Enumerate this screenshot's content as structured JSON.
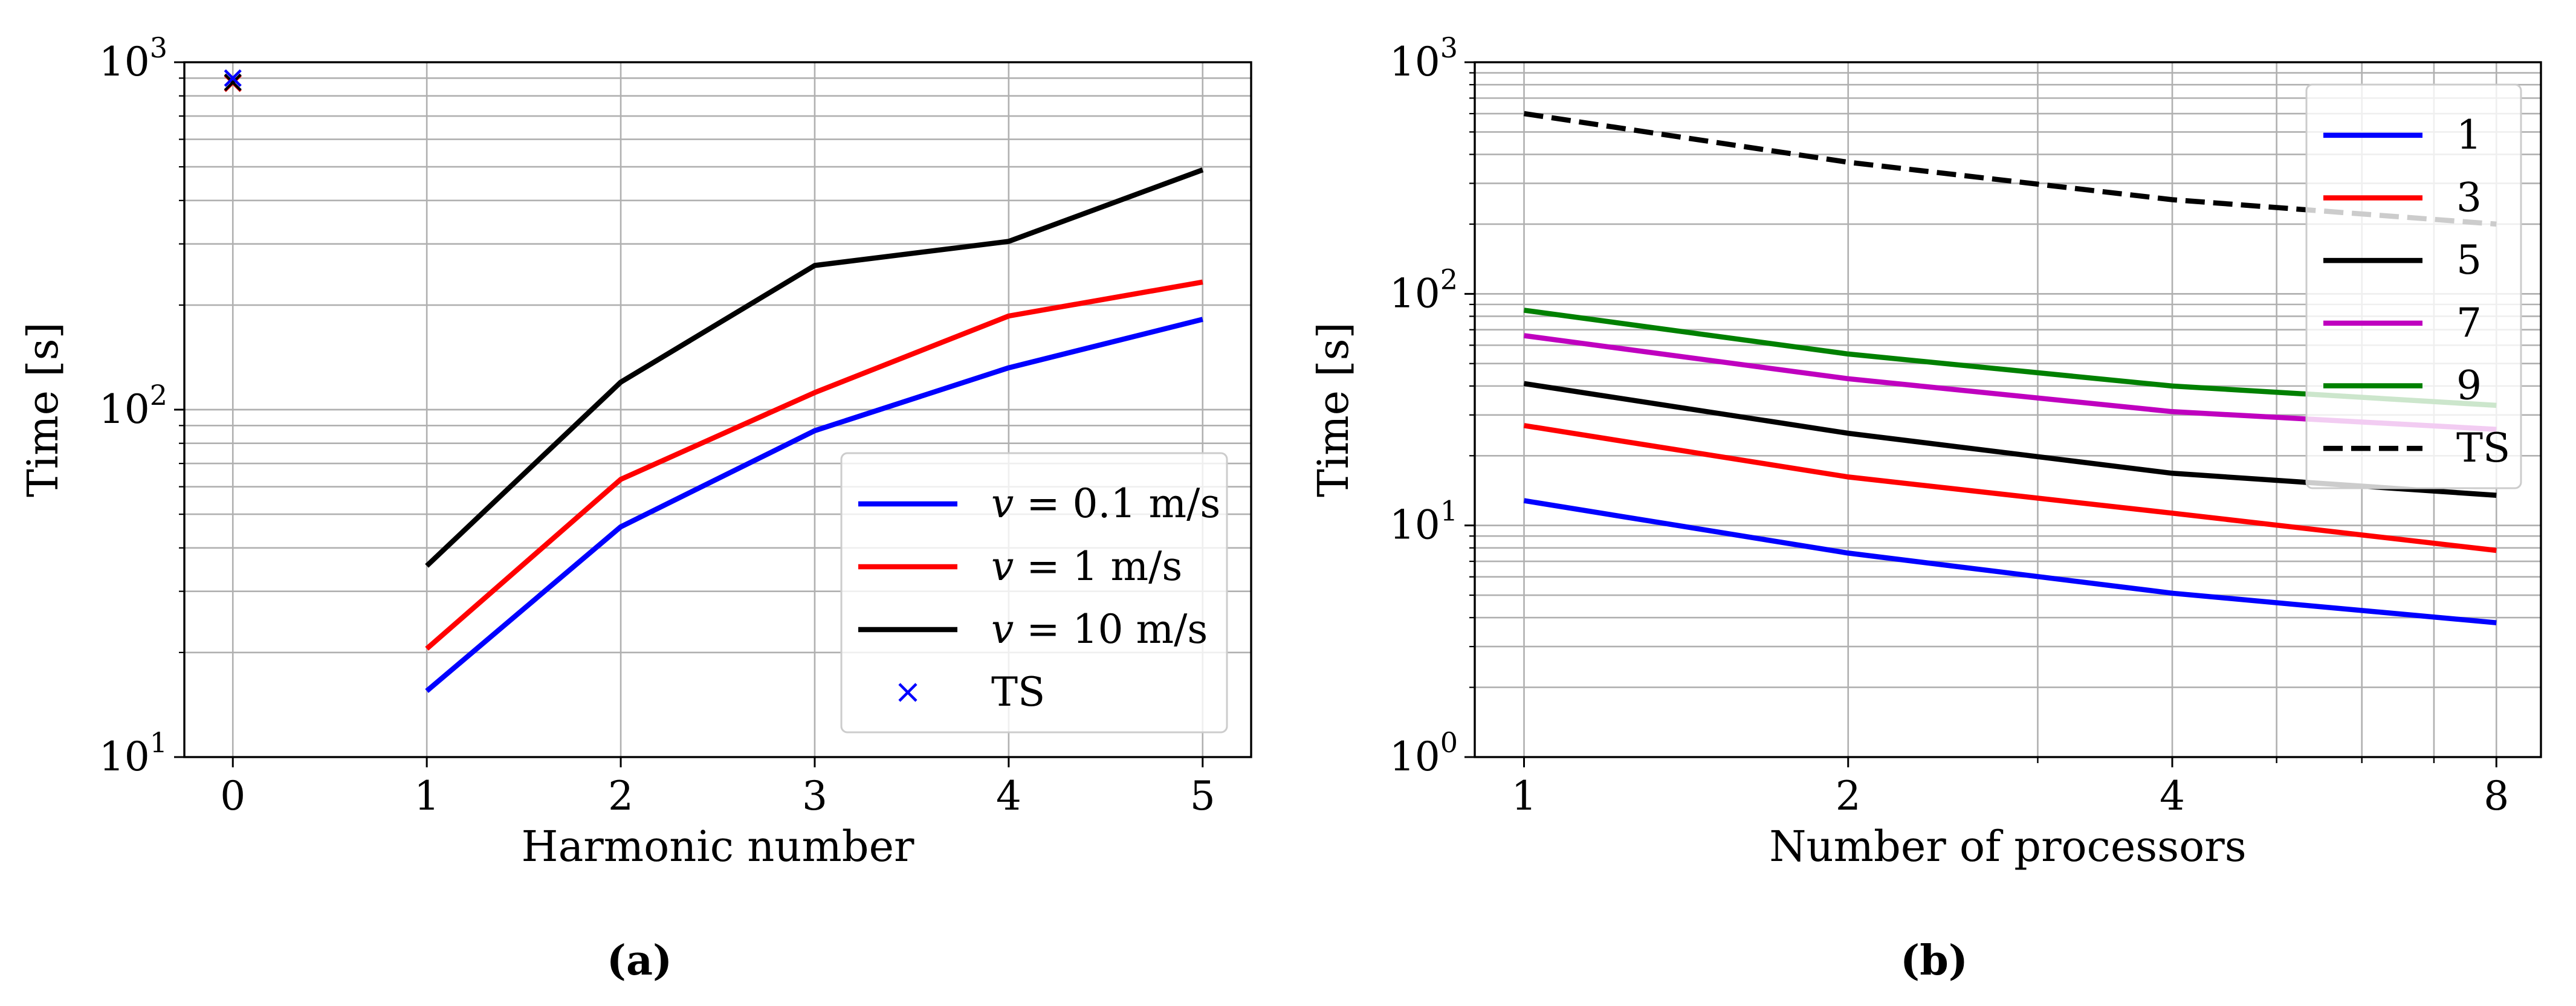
{
  "chart_data": [
    {
      "type": "line",
      "panel_label": "(a)",
      "xlabel": "Harmonic number",
      "ylabel": "Time [s]",
      "yscale": "log",
      "xlim": [
        -0.25,
        5.25
      ],
      "ylim": [
        10,
        1000
      ],
      "xticks": [
        0,
        1,
        2,
        3,
        4,
        5
      ],
      "xtick_labels": [
        "0",
        "1",
        "2",
        "3",
        "4",
        "5"
      ],
      "yticks": [
        10,
        100,
        1000
      ],
      "ytick_labels": [
        [
          "10",
          "1"
        ],
        [
          "10",
          "2"
        ],
        [
          "10",
          "3"
        ]
      ],
      "grid": true,
      "legend_position": "lower-right",
      "series": [
        {
          "name": "v = 0.1 m/s",
          "legend_var": "v",
          "legend_rest": " = 0.1 m/s",
          "color": "#0000ff",
          "style": "solid",
          "x": [
            1,
            2,
            3,
            4,
            5
          ],
          "values": [
            15.5,
            46,
            87,
            132,
            182
          ]
        },
        {
          "name": "v = 1 m/s",
          "legend_var": "v",
          "legend_rest": " = 1 m/s",
          "color": "#ff0000",
          "style": "solid",
          "x": [
            1,
            2,
            3,
            4,
            5
          ],
          "values": [
            20.5,
            63,
            112,
            186,
            233
          ]
        },
        {
          "name": "v = 10 m/s",
          "legend_var": "v",
          "legend_rest": " = 10 m/s",
          "color": "#000000",
          "style": "solid",
          "x": [
            1,
            2,
            3,
            4,
            5
          ],
          "values": [
            35.5,
            120,
            260,
            305,
            490
          ]
        },
        {
          "name": "TS",
          "legend_var": "",
          "legend_rest": "TS",
          "color": "#0000ff",
          "style": "marker",
          "x": [
            0,
            0,
            0
          ],
          "values": [
            870,
            875,
            900
          ],
          "marker_colors": [
            "#ff0000",
            "#000000",
            "#0000ff"
          ]
        }
      ]
    },
    {
      "type": "line",
      "panel_label": "(b)",
      "xlabel": "Number of processors",
      "ylabel": "Time [s]",
      "xscale": "log2",
      "yscale": "log",
      "xlim": [
        0.9,
        8.8
      ],
      "ylim": [
        1,
        1000
      ],
      "xticks": [
        1,
        2,
        4,
        8
      ],
      "xtick_labels": [
        "1",
        "2",
        "4",
        "8"
      ],
      "yticks": [
        1,
        10,
        100,
        1000
      ],
      "ytick_labels": [
        [
          "10",
          "0"
        ],
        [
          "10",
          "1"
        ],
        [
          "10",
          "2"
        ],
        [
          "10",
          "3"
        ]
      ],
      "grid": true,
      "legend_position": "upper-right",
      "series": [
        {
          "name": "1",
          "color": "#0000ff",
          "style": "solid",
          "x": [
            1,
            2,
            4,
            8
          ],
          "values": [
            12.8,
            7.6,
            5.1,
            3.8
          ]
        },
        {
          "name": "3",
          "color": "#ff0000",
          "style": "solid",
          "x": [
            1,
            2,
            4,
            8
          ],
          "values": [
            27,
            16.2,
            11.3,
            7.8
          ]
        },
        {
          "name": "5",
          "color": "#000000",
          "style": "solid",
          "x": [
            1,
            2,
            4,
            8
          ],
          "values": [
            41,
            25,
            16.8,
            13.5
          ]
        },
        {
          "name": "7",
          "color": "#bf00bf",
          "style": "solid",
          "x": [
            1,
            2,
            4,
            8
          ],
          "values": [
            66,
            43,
            31,
            26
          ]
        },
        {
          "name": "9",
          "color": "#008000",
          "style": "solid",
          "x": [
            1,
            2,
            4,
            8
          ],
          "values": [
            85,
            55,
            40,
            33
          ]
        },
        {
          "name": "TS",
          "color": "#000000",
          "style": "dashed",
          "x": [
            1,
            2,
            4,
            8
          ],
          "values": [
            600,
            370,
            255,
            200
          ]
        }
      ]
    }
  ]
}
